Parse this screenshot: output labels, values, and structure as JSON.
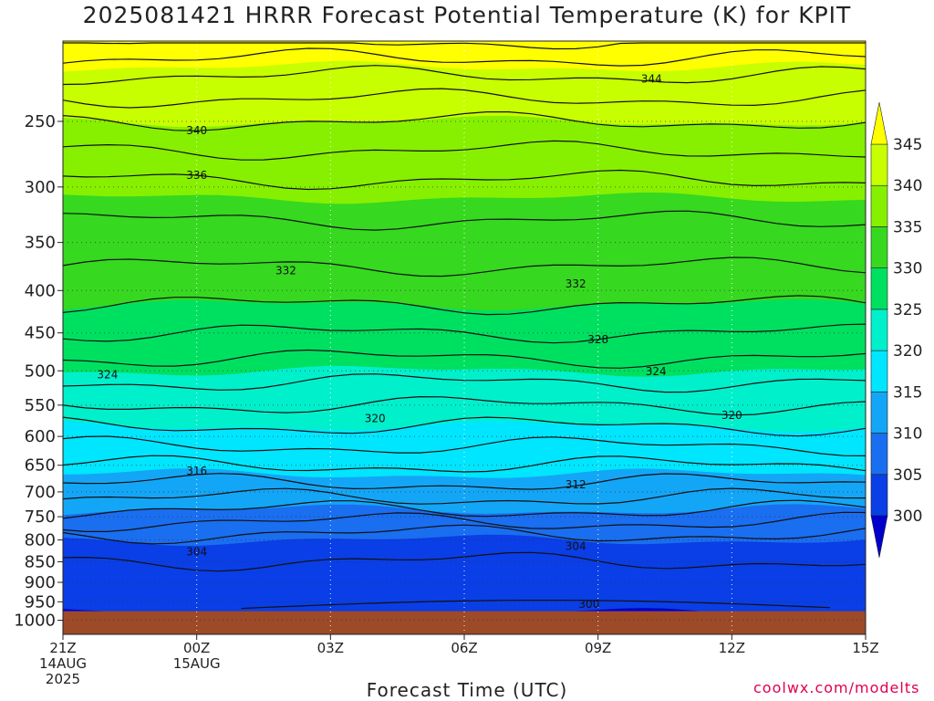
{
  "title": "2025081421 HRRR Forecast Potential Temperature (K) for KPIT",
  "credit": "coolwx.com/modelts",
  "chart_data": {
    "type": "heatmap",
    "title": "2025081421 HRRR Forecast Potential Temperature (K) for KPIT",
    "xlabel": "Forecast Time (UTC)",
    "ylabel": "",
    "x_range_hours": [
      0,
      18
    ],
    "x_ticks": [
      {
        "hour": 0,
        "lines": [
          "21Z",
          "14AUG",
          "2025"
        ]
      },
      {
        "hour": 3,
        "lines": [
          "00Z",
          "15AUG"
        ]
      },
      {
        "hour": 6,
        "lines": [
          "03Z"
        ]
      },
      {
        "hour": 9,
        "lines": [
          "06Z"
        ]
      },
      {
        "hour": 12,
        "lines": [
          "09Z"
        ]
      },
      {
        "hour": 15,
        "lines": [
          "12Z"
        ]
      },
      {
        "hour": 18,
        "lines": [
          "15Z"
        ]
      }
    ],
    "y_axis": "pressure (hPa), log scale, inverted",
    "y_range": [
      1040,
      200
    ],
    "y_ticks": [
      250,
      300,
      350,
      400,
      450,
      500,
      550,
      600,
      650,
      700,
      750,
      800,
      850,
      900,
      950,
      1000
    ],
    "grid": true,
    "surface_pressure": 975,
    "colorbar": {
      "levels": [
        300,
        305,
        310,
        315,
        320,
        325,
        330,
        335,
        340,
        345
      ],
      "colors": [
        "#0000cc",
        "#0a3ee6",
        "#1a6ef0",
        "#14a6f6",
        "#00e6ff",
        "#00f0cc",
        "#00e060",
        "#36d820",
        "#86f000",
        "#c8ff00",
        "#ffff00"
      ]
    },
    "profile_reference": [
      {
        "pressure": 980,
        "theta": 302
      },
      {
        "pressure": 900,
        "theta": 303
      },
      {
        "pressure": 800,
        "theta": 305
      },
      {
        "pressure": 700,
        "theta": 313
      },
      {
        "pressure": 650,
        "theta": 316
      },
      {
        "pressure": 600,
        "theta": 319
      },
      {
        "pressure": 550,
        "theta": 322
      },
      {
        "pressure": 500,
        "theta": 325
      },
      {
        "pressure": 450,
        "theta": 328
      },
      {
        "pressure": 400,
        "theta": 331
      },
      {
        "pressure": 350,
        "theta": 333
      },
      {
        "pressure": 300,
        "theta": 335.5
      },
      {
        "pressure": 250,
        "theta": 340
      },
      {
        "pressure": 220,
        "theta": 344
      },
      {
        "pressure": 200,
        "theta": 348
      }
    ],
    "contour_labels": [
      {
        "text": "344",
        "hour": 13.2,
        "pressure": 222
      },
      {
        "text": "340",
        "hour": 3.0,
        "pressure": 256
      },
      {
        "text": "336",
        "hour": 3.0,
        "pressure": 290
      },
      {
        "text": "332",
        "hour": 5.0,
        "pressure": 378
      },
      {
        "text": "332",
        "hour": 11.5,
        "pressure": 392
      },
      {
        "text": "328",
        "hour": 12.0,
        "pressure": 458
      },
      {
        "text": "324",
        "hour": 1.0,
        "pressure": 505
      },
      {
        "text": "324",
        "hour": 13.3,
        "pressure": 500
      },
      {
        "text": "320",
        "hour": 7.0,
        "pressure": 570
      },
      {
        "text": "320",
        "hour": 15.0,
        "pressure": 565
      },
      {
        "text": "316",
        "hour": 3.0,
        "pressure": 660
      },
      {
        "text": "312",
        "hour": 11.5,
        "pressure": 685
      },
      {
        "text": "304",
        "hour": 3.0,
        "pressure": 826
      },
      {
        "text": "304",
        "hour": 11.5,
        "pressure": 813
      },
      {
        "text": "300",
        "hour": 11.8,
        "pressure": 955
      }
    ]
  }
}
